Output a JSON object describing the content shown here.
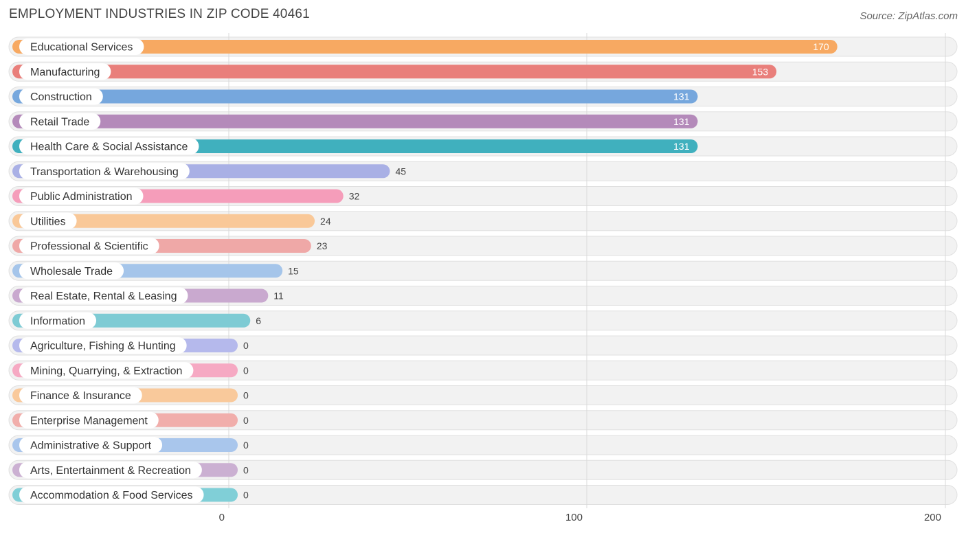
{
  "header": {
    "title": "EMPLOYMENT INDUSTRIES IN ZIP CODE 40461",
    "source": "Source: ZipAtlas.com"
  },
  "chart_data": {
    "type": "bar",
    "orientation": "horizontal",
    "categories": [
      "Educational Services",
      "Manufacturing",
      "Construction",
      "Retail Trade",
      "Health Care & Social Assistance",
      "Transportation & Warehousing",
      "Public Administration",
      "Utilities",
      "Professional & Scientific",
      "Wholesale Trade",
      "Real Estate, Rental & Leasing",
      "Information",
      "Agriculture, Fishing & Hunting",
      "Mining, Quarrying, & Extraction",
      "Finance & Insurance",
      "Enterprise Management",
      "Administrative & Support",
      "Arts, Entertainment & Recreation",
      "Accommodation & Food Services"
    ],
    "values": [
      170,
      153,
      131,
      131,
      131,
      45,
      32,
      24,
      23,
      15,
      11,
      6,
      0,
      0,
      0,
      0,
      0,
      0,
      0
    ],
    "colors": [
      "#f7a962",
      "#e97f7b",
      "#76a7dd",
      "#b48aba",
      "#40b0be",
      "#a9b0e5",
      "#f59dba",
      "#f9c898",
      "#efa8a7",
      "#a5c5ea",
      "#c9a9cf",
      "#7ecbd4",
      "#b5b9ec",
      "#f6a9c3",
      "#f9c99b",
      "#f1aeab",
      "#a9c6ec",
      "#cbb0d2",
      "#80cfd7"
    ],
    "xticks": [
      0,
      100,
      200
    ],
    "xlim": [
      0,
      200
    ],
    "grid": true
  }
}
